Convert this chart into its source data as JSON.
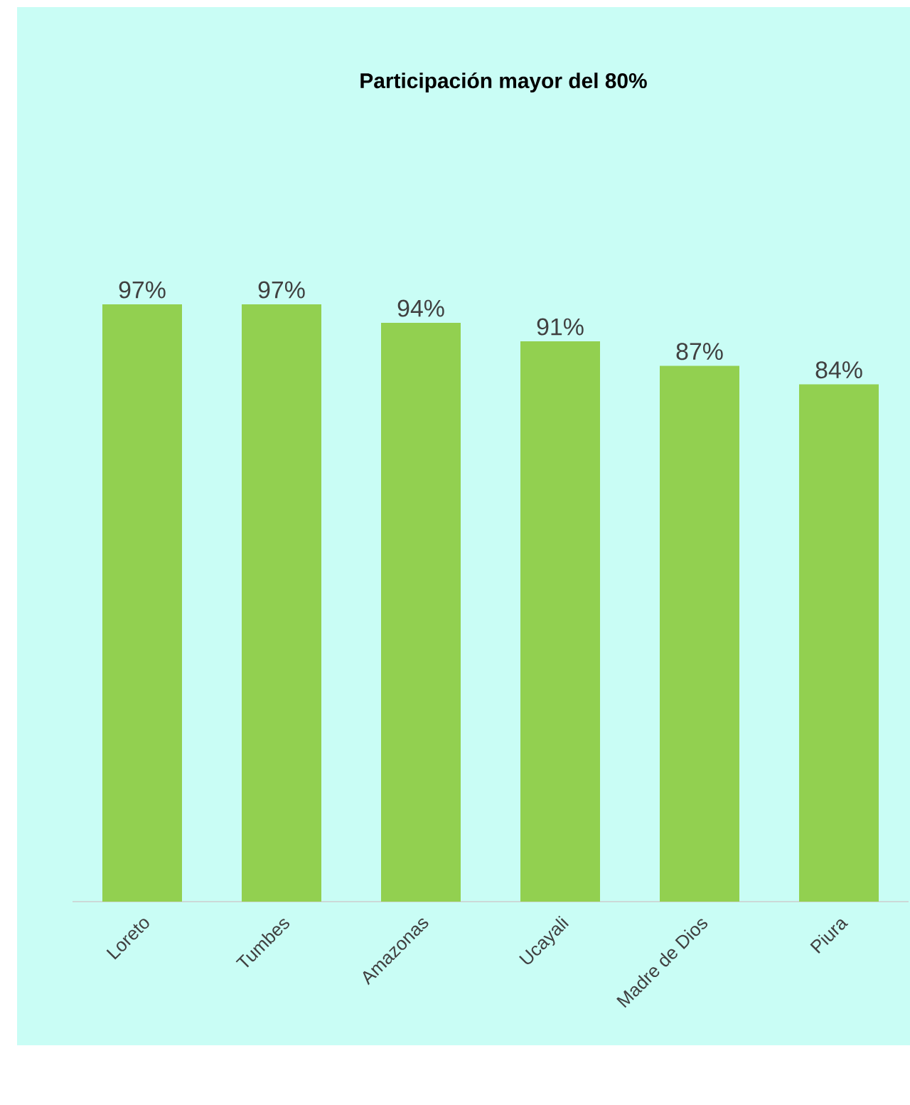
{
  "chart_data": {
    "type": "bar",
    "title": "Participación mayor del 80%",
    "categories": [
      "Loreto",
      "Tumbes",
      "Amazonas",
      "Ucayali",
      "Madre de Dios",
      "Piura"
    ],
    "values": [
      97,
      97,
      94,
      91,
      87,
      84
    ],
    "value_labels": [
      "97%",
      "97%",
      "94%",
      "91%",
      "87%",
      "84%"
    ],
    "color": "#92d050",
    "tick_labels": "x"
  }
}
